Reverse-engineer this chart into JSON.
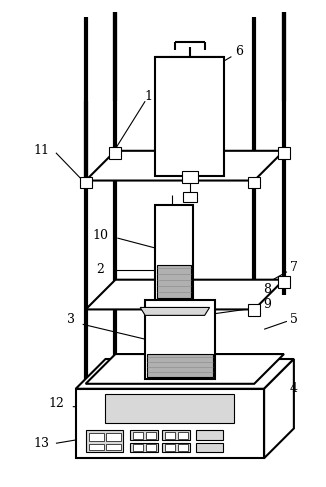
{
  "fig_width": 3.26,
  "fig_height": 4.87,
  "dpi": 100,
  "bg_color": "#ffffff",
  "lc": "#000000",
  "gray_fill": "#b0b0b0",
  "light_gray": "#d8d8d8",
  "post_lw": 3.0,
  "shelf_lw": 1.5,
  "thin_lw": 0.8,
  "label_fs": 9
}
